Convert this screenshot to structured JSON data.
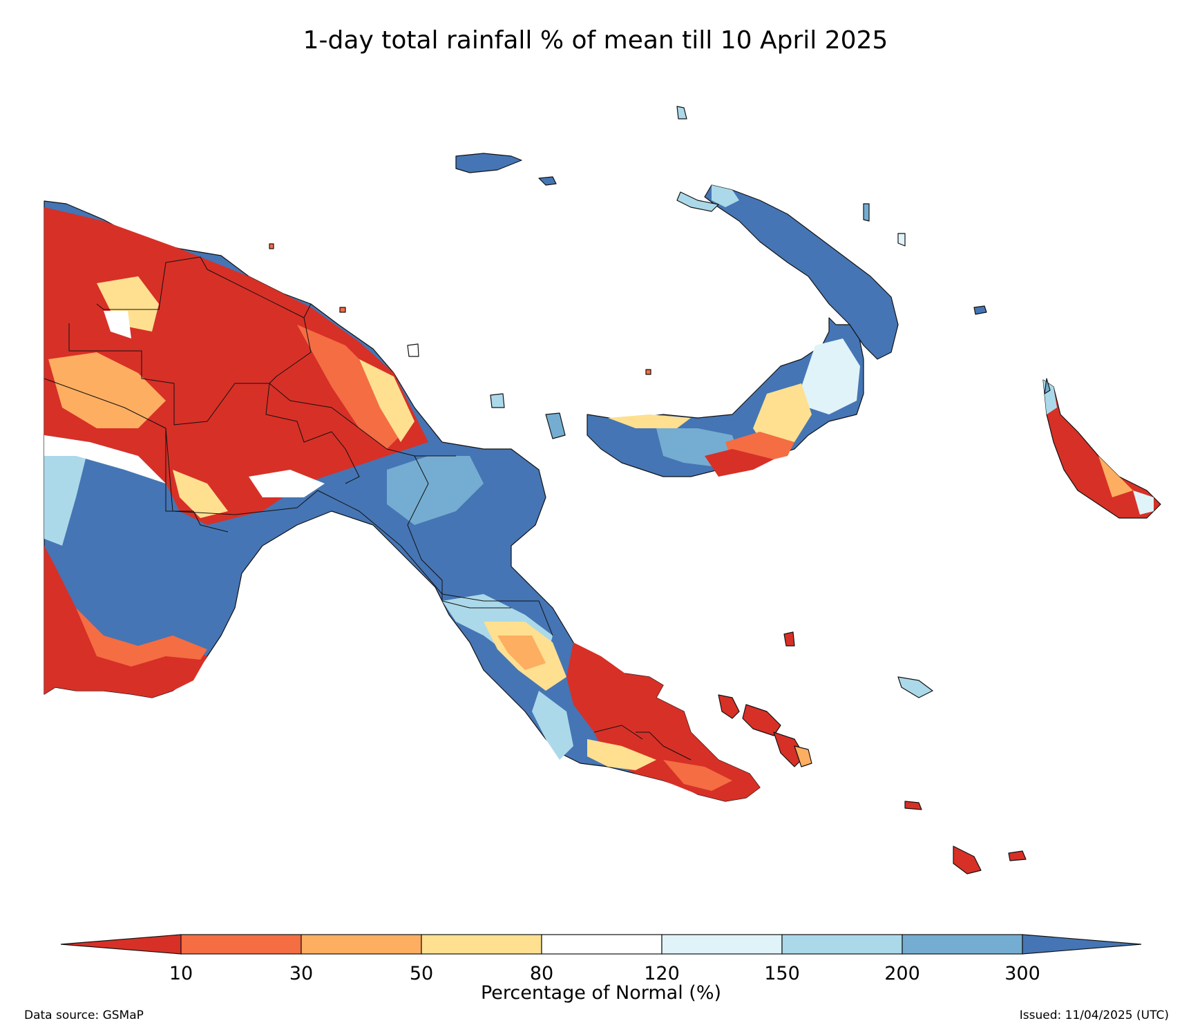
{
  "title": "1-day total rainfall % of mean till 10 April 2025",
  "colors": {
    "lt10": "#d73027",
    "c10_30": "#f46d43",
    "c30_50": "#fdae61",
    "c50_80": "#fee090",
    "c80_120": "#ffffff",
    "c120_150": "#e0f3f8",
    "c150_200": "#abd9e9",
    "c200_300": "#74add1",
    "gt300": "#4575b4"
  },
  "legend": {
    "ticks": [
      "10",
      "30",
      "50",
      "80",
      "120",
      "150",
      "200",
      "300"
    ],
    "label": "Percentage of Normal (%)"
  },
  "footer": {
    "source": "Data source: GSMaP",
    "issued": "Issued: 11/04/2025 (UTC)"
  }
}
